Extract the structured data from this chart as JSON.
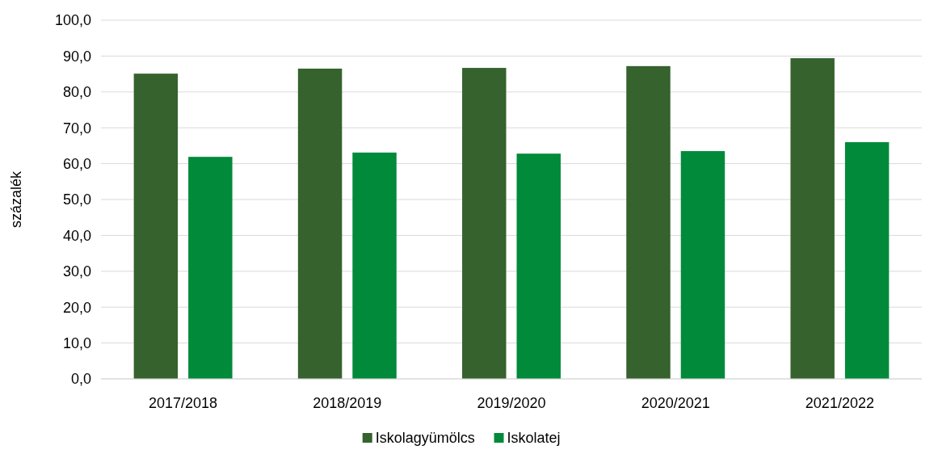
{
  "chart_data": {
    "type": "bar",
    "ylabel": "százalék",
    "categories": [
      "2017/2018",
      "2018/2019",
      "2019/2020",
      "2020/2021",
      "2021/2022"
    ],
    "series": [
      {
        "name": "Iskolagyümölcs",
        "color": "#35622d",
        "values": [
          85.1,
          86.5,
          86.7,
          87.2,
          89.4
        ]
      },
      {
        "name": "Iskolatej",
        "color": "#008a3a",
        "values": [
          61.9,
          63.1,
          62.8,
          63.5,
          66.0
        ]
      }
    ],
    "ylim": [
      0,
      100
    ],
    "yticks": [
      {
        "value": 0,
        "label": "0,0"
      },
      {
        "value": 10,
        "label": "10,0"
      },
      {
        "value": 20,
        "label": "20,0"
      },
      {
        "value": 30,
        "label": "30,0"
      },
      {
        "value": 40,
        "label": "40,0"
      },
      {
        "value": 50,
        "label": "50,0"
      },
      {
        "value": 60,
        "label": "60,0"
      },
      {
        "value": 70,
        "label": "70,0"
      },
      {
        "value": 80,
        "label": "80,0"
      },
      {
        "value": 90,
        "label": "90,0"
      },
      {
        "value": 100,
        "label": "100,0"
      }
    ],
    "grid": "y",
    "legend": "bottom"
  }
}
